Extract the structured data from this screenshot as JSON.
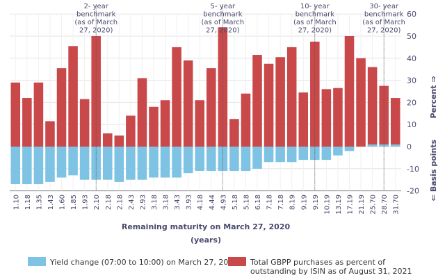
{
  "chart_data": {
    "type": "bar",
    "xlabel": "Remaining maturity on March 27, 2020",
    "xlabel_unit": "(years)",
    "ylabel_top": "Percent ⇒",
    "ylabel_bottom": "⇐ Basis points",
    "ylim": [
      -20,
      60
    ],
    "yticks": [
      -20,
      -10,
      0,
      10,
      20,
      30,
      40,
      50,
      60
    ],
    "grid": true,
    "legend_position": "bottom",
    "categories": [
      "1.10",
      "1.18",
      "1.35",
      "1.43",
      "1.60",
      "1.85",
      "1.93",
      "2.10",
      "2.18",
      "2.18",
      "2.43",
      "2.93",
      "3.18",
      "3.18",
      "3.43",
      "3.93",
      "4.18",
      "4.44",
      "4.93",
      "5.18",
      "5.18",
      "6.18",
      "7.18",
      "7.18",
      "8.19",
      "9.19",
      "9.19",
      "10.19",
      "13.19",
      "17.19",
      "21.19",
      "25.70",
      "28.70",
      "31.70"
    ],
    "series": [
      {
        "name": "Yield change (07:00 to 10:00) on March 27, 2020",
        "color": "#7ec3e3",
        "values": [
          -17,
          -17,
          -17,
          -16,
          -14,
          -13,
          -15,
          -15,
          -15,
          -16,
          -15,
          -15,
          -14,
          -14,
          -14,
          -12,
          -11,
          -11,
          -11,
          -11,
          -11,
          -10,
          -7,
          -7,
          -7,
          -6,
          -6,
          -6,
          -4,
          -2,
          0,
          1,
          1,
          1
        ]
      },
      {
        "name": "Total GBPP purchases as percent of outstanding by ISIN as of August 31, 2021",
        "color": "#c9494b",
        "values": [
          29,
          22,
          29,
          11.5,
          35.5,
          45.5,
          21.5,
          50,
          6,
          5,
          14,
          31,
          18,
          21,
          45,
          39,
          21,
          35.5,
          54,
          12.5,
          24,
          41.5,
          37.5,
          40.5,
          45,
          24.5,
          47.5,
          26,
          26.5,
          50,
          40,
          36,
          27.5,
          22
        ]
      }
    ],
    "annotations": [
      {
        "index": 7,
        "lines": [
          "2- year",
          "benchmark",
          "(as of March",
          "27, 2020)"
        ]
      },
      {
        "index": 18,
        "lines": [
          "5- year",
          "benchmark",
          "(as of March",
          "27, 2020)"
        ]
      },
      {
        "index": 26,
        "lines": [
          "10- year",
          "benchmark",
          "(as of March",
          "27, 2020)"
        ]
      },
      {
        "index": 32,
        "lines": [
          "30- year",
          "benchmark",
          "(as of March",
          "27, 2020)"
        ]
      }
    ]
  }
}
